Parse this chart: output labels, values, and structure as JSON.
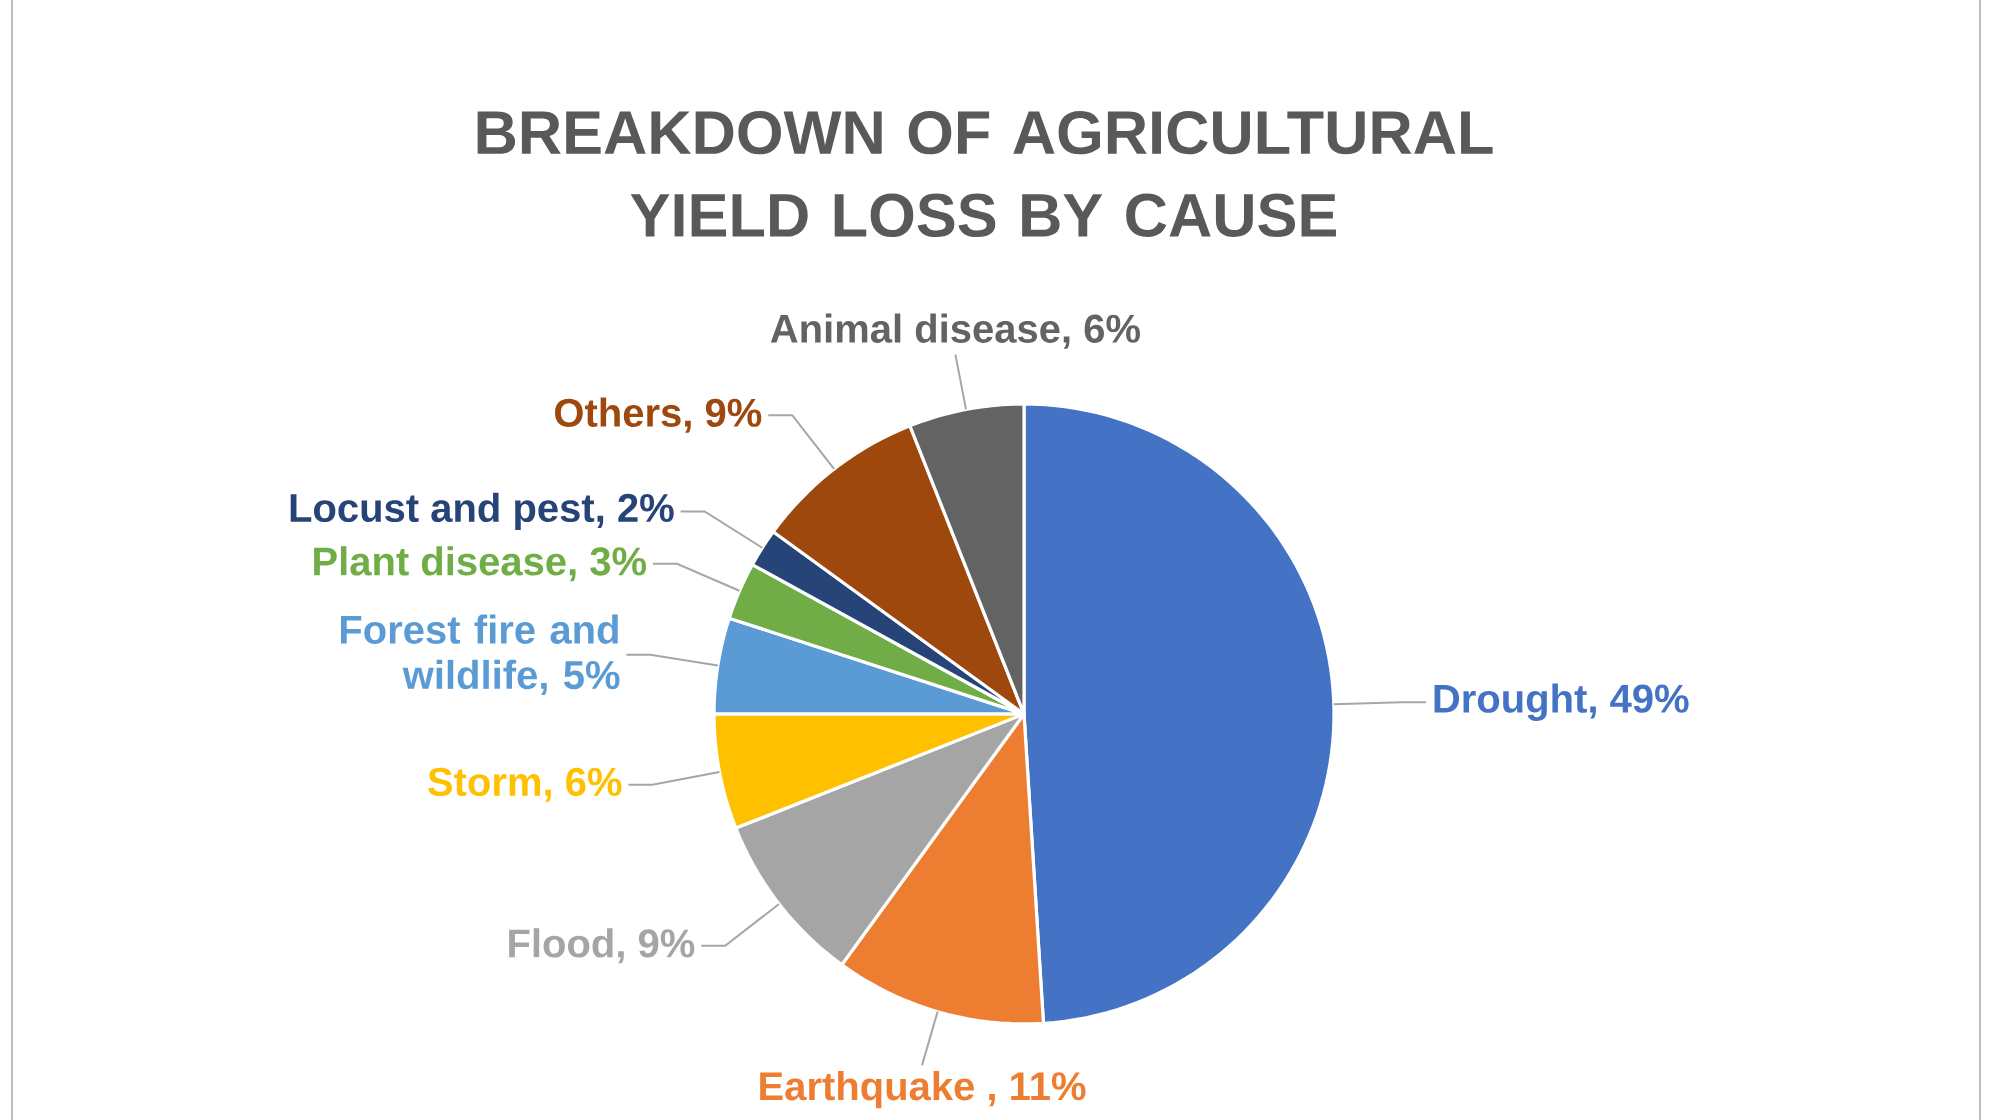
{
  "chart_data": {
    "type": "pie",
    "title": "BREAKDOWN OF AGRICULTURAL YIELD LOSS BY CAUSE",
    "categories": [
      null,
      null,
      null,
      null,
      null,
      null,
      null,
      null,
      null
    ],
    "values": [
      49,
      11,
      9,
      6,
      5,
      3,
      2,
      9,
      6
    ],
    "value_labels": [
      "Drought, 49%",
      "Earthquake , 11%",
      "Flood, 9%",
      "Storm, 6%",
      "Forest fire and wildlife, 5%",
      "Plant disease, 3%",
      "Locust and pest, 2%",
      "Others, 9%",
      "Animal disease, 6%"
    ],
    "colors": [
      "#4472c4",
      "#ed7d31",
      "#a5a5a5",
      "#ffc000",
      "#5b9bd5",
      "#70ad47",
      "#264478",
      "#9e480e",
      "#636363"
    ]
  }
}
